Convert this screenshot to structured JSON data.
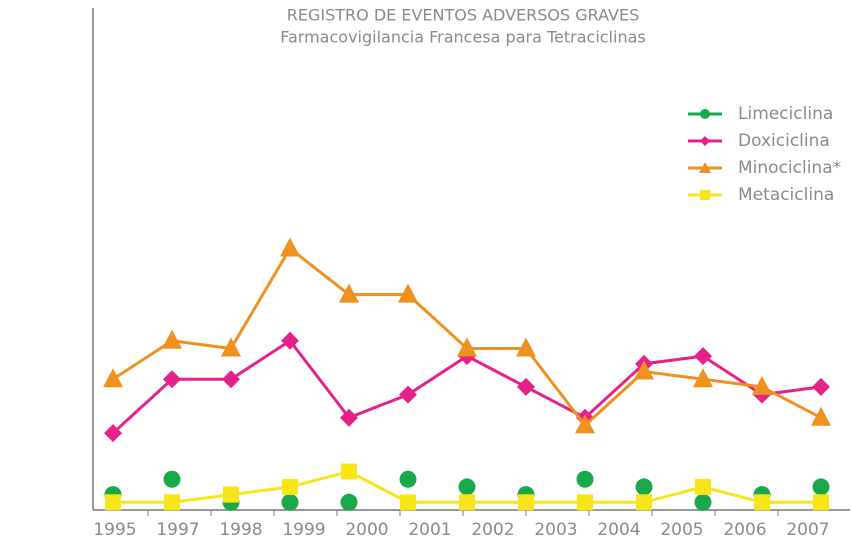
{
  "chart_data": {
    "type": "line",
    "title": "REGISTRO DE EVENTOS ADVERSOS GRAVES",
    "subtitle": "Farmacovigilancia Francesa para Tetraciclinas",
    "categories": [
      "1995",
      "1997",
      "1998",
      "1999",
      "2000",
      "2001",
      "2002",
      "2003",
      "2004",
      "2005",
      "2006",
      "2007",
      null
    ],
    "ylim": [
      0,
      65
    ],
    "legend": "upper right",
    "series": [
      {
        "name": "Limeciclina",
        "color": "#1aa84b",
        "marker": "circle",
        "line": false,
        "values": [
          2,
          4,
          1,
          1,
          1,
          4,
          3,
          2,
          4,
          3,
          1,
          2,
          3
        ]
      },
      {
        "name": "Doxiciclina",
        "color": "#e6218a",
        "marker": "diamond",
        "line": true,
        "values": [
          10,
          17,
          17,
          22,
          12,
          15,
          20,
          16,
          12,
          19,
          20,
          15,
          16
        ]
      },
      {
        "name": "Minociclina*",
        "color": "#f0901e",
        "marker": "triangle",
        "line": true,
        "values": [
          17,
          22,
          21,
          34,
          28,
          28,
          21,
          21,
          11,
          18,
          17,
          16,
          12
        ]
      },
      {
        "name": "Metaciclina",
        "color": "#f7e51a",
        "marker": "square",
        "line": true,
        "values": [
          1,
          1,
          2,
          3,
          5,
          1,
          1,
          1,
          1,
          1,
          3,
          1,
          1
        ]
      }
    ]
  }
}
